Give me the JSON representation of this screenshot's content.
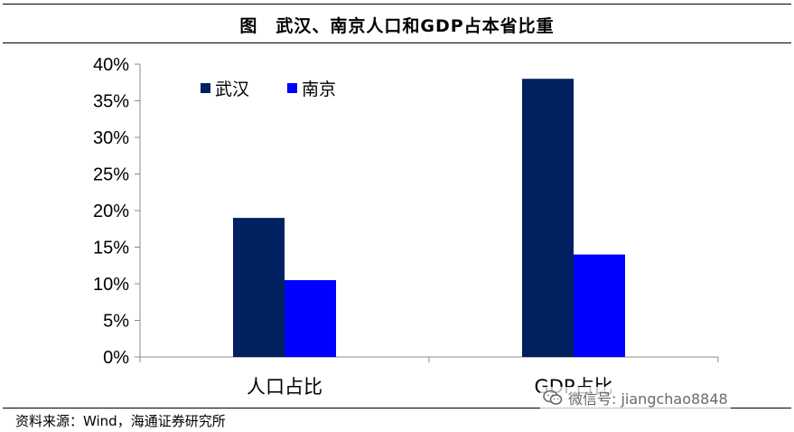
{
  "title": "图　武汉、南京人口和GDP占本省比重",
  "source": "资料来源：Wind，海通证券研究所",
  "watermark": {
    "text": "微信号: jiangchao8848",
    "icon": "wechat-icon"
  },
  "colors": {
    "wuhan": "#002060",
    "nanjing": "#0000FF",
    "axis": "#888888",
    "text": "#000000"
  },
  "chart_data": {
    "type": "bar",
    "categories": [
      "人口占比",
      "GDP占比"
    ],
    "series": [
      {
        "name": "武汉",
        "values": [
          19.0,
          38.0
        ]
      },
      {
        "name": "南京",
        "values": [
          10.5,
          14.0
        ]
      }
    ],
    "ylim": [
      0,
      40
    ],
    "yticks": [
      "0%",
      "5%",
      "10%",
      "15%",
      "20%",
      "25%",
      "30%",
      "35%",
      "40%"
    ],
    "ytick_values": [
      0,
      5,
      10,
      15,
      20,
      25,
      30,
      35,
      40
    ],
    "grid": false,
    "legend": "top-left"
  }
}
